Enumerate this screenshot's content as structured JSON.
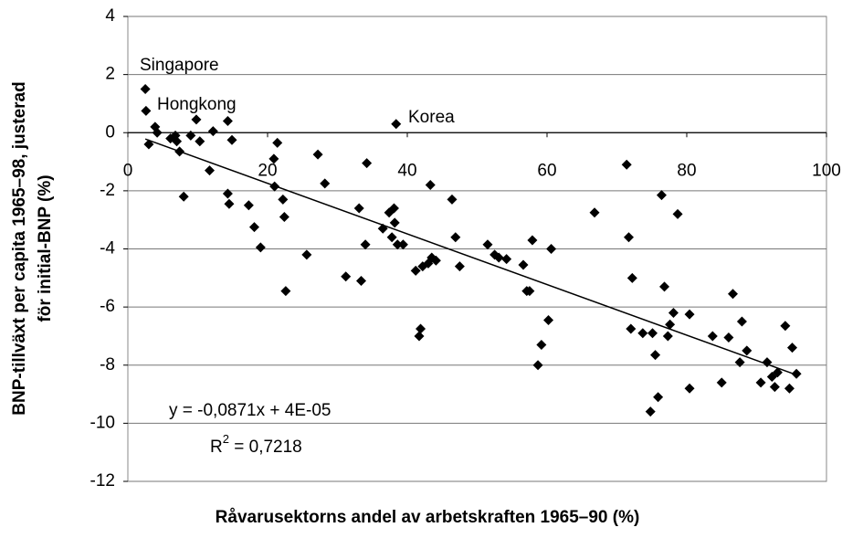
{
  "chart_data": {
    "type": "scatter",
    "x_label": "Råvarusektorns andel av arbetskraften 1965–90 (%)",
    "y_label": [
      "BNP-tillväxt per capita 1965–98, justerad",
      "för initial-BNP (%)"
    ],
    "xlim": [
      0,
      100
    ],
    "xticks": [
      0,
      20,
      40,
      60,
      80,
      100
    ],
    "ylim": [
      -12,
      4
    ],
    "yticks": [
      -12,
      -10,
      -8,
      -6,
      -4,
      -2,
      0,
      2,
      4
    ],
    "grid": true,
    "color": "#000000",
    "series": [
      {
        "x": [
          2.5,
          2.6,
          3,
          3.9,
          4.2,
          6.1,
          6.8,
          7,
          7.4,
          8,
          9,
          9.8,
          10.3,
          11.7,
          12.2,
          14.3,
          14.3,
          14.5,
          14.9,
          17.3,
          18.1,
          19,
          20.9,
          21,
          21.4,
          22.2,
          22.4,
          22.6,
          25.6,
          27.2,
          28.2,
          31.2,
          33.1,
          33.4,
          34,
          34.2,
          36.5,
          37.4,
          37.8,
          38.1,
          38.2,
          38.4,
          38.6,
          39.4,
          41.2,
          41.9,
          41.7,
          42.2,
          43,
          43.3,
          43.5,
          44.1,
          46.4,
          46.9,
          47.5,
          51.5,
          52.5,
          53.1,
          54.2,
          56.6,
          57.1,
          57.5,
          57.9,
          58.7,
          59.2,
          60.2,
          60.6,
          66.8,
          71.4,
          71.7,
          72,
          72.2,
          73.7,
          74.8,
          75.1,
          75.5,
          75.9,
          76.4,
          76.8,
          77.3,
          77.6,
          78.1,
          78.7,
          80.4,
          80.4,
          83.7,
          85,
          86,
          86.6,
          87.6,
          87.9,
          88.6,
          90.6,
          91.5,
          92.2,
          92.6,
          93,
          94.1,
          94.7,
          95.1,
          95.7
        ],
        "values": [
          1.5,
          0.75,
          -0.4,
          0.2,
          0,
          -0.2,
          -0.1,
          -0.3,
          -0.65,
          -2.2,
          -0.1,
          0.45,
          -0.3,
          -1.3,
          0.05,
          0.4,
          -2.1,
          -2.45,
          -0.25,
          -2.5,
          -3.25,
          -3.95,
          -0.9,
          -1.85,
          -0.35,
          -2.3,
          -2.9,
          -5.45,
          -4.2,
          -0.75,
          -1.75,
          -4.95,
          -2.6,
          -5.1,
          -3.85,
          -1.05,
          -3.3,
          -2.75,
          -3.6,
          -2.6,
          -3.1,
          0.3,
          -3.85,
          -3.85,
          -4.75,
          -6.75,
          -7.0,
          -4.6,
          -4.5,
          -1.8,
          -4.3,
          -4.4,
          -2.3,
          -3.6,
          -4.6,
          -3.85,
          -4.2,
          -4.3,
          -4.35,
          -4.55,
          -5.45,
          -5.45,
          -3.7,
          -8.0,
          -7.3,
          -6.45,
          -4.0,
          -2.75,
          -1.1,
          -3.6,
          -6.75,
          -5.0,
          -6.9,
          -9.6,
          -6.9,
          -7.65,
          -9.1,
          -2.15,
          -5.3,
          -7.0,
          -6.6,
          -6.2,
          -2.8,
          -6.25,
          -8.8,
          -7.0,
          -8.6,
          -7.05,
          -5.55,
          -7.9,
          -6.5,
          -7.5,
          -8.6,
          -7.9,
          -8.4,
          -8.75,
          -8.25,
          -6.65,
          -8.8,
          -7.4,
          -8.3
        ]
      }
    ],
    "trendline": {
      "slope": -0.0871,
      "intercept": 4e-05
    },
    "annotations": [
      "Singapore",
      "Hongkong",
      "Korea",
      "y = -0,0871x + 4E-05"
    ],
    "r2_label": {
      "base": "R",
      "sup": "2",
      "rest": " = 0,7218"
    }
  }
}
